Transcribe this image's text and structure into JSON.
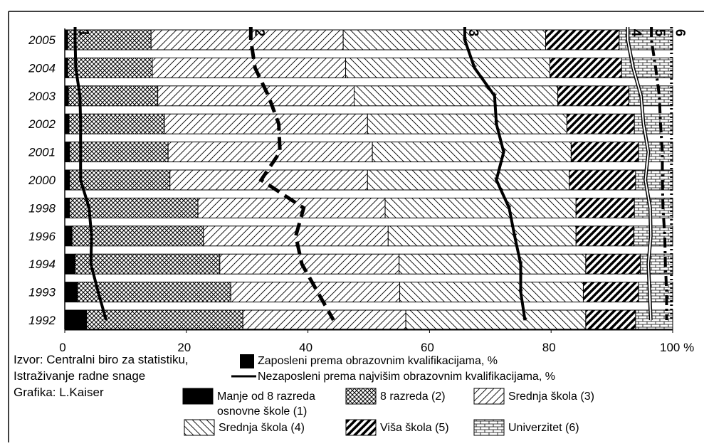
{
  "chart_data": {
    "type": "bar",
    "orientation": "horizontal",
    "stacked": true,
    "categories": [
      "2005",
      "2004",
      "2003",
      "2002",
      "2001",
      "2000",
      "1998",
      "1996",
      "1994",
      "1993",
      "1992"
    ],
    "series": [
      {
        "name": "Manje od 8 razreda osnovne škole (1)",
        "pattern": "solid",
        "values": [
          0.5,
          0.5,
          0.6,
          0.7,
          0.8,
          0.8,
          0.8,
          1.2,
          1.7,
          2.1,
          3.6
        ]
      },
      {
        "name": "8 razreda (2)",
        "pattern": "cross",
        "values": [
          13.7,
          13.9,
          14.7,
          15.7,
          16.2,
          16.5,
          21.1,
          21.6,
          23.8,
          25.2,
          25.7
        ]
      },
      {
        "name": "Srednja škola (3)",
        "pattern": "hatch-right",
        "values": [
          31.6,
          31.8,
          32.3,
          33.4,
          33.6,
          32.5,
          30.8,
          30.4,
          29.5,
          27.8,
          26.8
        ]
      },
      {
        "name": "Srednja škola (4)",
        "pattern": "hatch-left",
        "values": [
          33.3,
          33.6,
          33.5,
          32.8,
          32.7,
          33.2,
          31.4,
          30.9,
          30.7,
          30.2,
          29.6
        ]
      },
      {
        "name": "Viša škola (5)",
        "pattern": "hatch-bold",
        "values": [
          12.1,
          11.8,
          11.7,
          11.1,
          11.1,
          10.9,
          9.6,
          9.5,
          9.0,
          9.1,
          8.2
        ]
      },
      {
        "name": "Univerzitet (6)",
        "pattern": "brick",
        "values": [
          8.8,
          8.4,
          7.2,
          6.3,
          5.6,
          6.1,
          6.3,
          6.4,
          5.3,
          5.6,
          6.1
        ]
      }
    ],
    "lines": [
      {
        "name": "1",
        "style": "solid",
        "values": [
          1.7,
          1.8,
          2.5,
          2.6,
          2.6,
          2.6,
          4.0,
          4.4,
          4.3,
          5.5,
          6.8
        ]
      },
      {
        "name": "2",
        "style": "dash",
        "values": [
          30.6,
          31.3,
          33.5,
          35.2,
          35.4,
          32.3,
          39.3,
          38.0,
          39.0,
          41.6,
          44.2
        ]
      },
      {
        "name": "3",
        "style": "star",
        "values": [
          65.8,
          67.4,
          70.7,
          71.0,
          72.2,
          71.0,
          73.1,
          74.0,
          75.0,
          75.0,
          75.7
        ]
      },
      {
        "name": "4",
        "style": "double",
        "values": [
          92.6,
          93.5,
          94.8,
          95.2,
          96.0,
          95.5,
          96.3,
          96.4,
          96.0,
          96.2,
          96.4
        ]
      },
      {
        "name": "5",
        "style": "dashdot",
        "values": [
          96.5,
          97.2,
          97.8,
          98.0,
          98.3,
          98.3,
          98.4,
          98.7,
          98.8,
          99.0,
          99.0
        ]
      },
      {
        "name": "6",
        "style": "dotted",
        "values": [
          99.8,
          99.8,
          99.8,
          99.8,
          99.8,
          99.8,
          99.8,
          99.8,
          99.8,
          99.8,
          99.8
        ]
      }
    ],
    "x_ticks": [
      "0",
      "20",
      "40",
      "60",
      "80",
      "100 %"
    ],
    "xlim": [
      0,
      100
    ],
    "grid": false,
    "source_lines": [
      "Izvor: Centralni biro za statistiku,",
      "Istraživanje radne snage",
      "Grafika: L.Kaiser"
    ],
    "legend_lines": [
      {
        "label": "Zaposleni prema obrazovnim kvalifikacijama, %",
        "swatch": "bar"
      },
      {
        "label": "Nezaposleni prema najvišim obrazovnim kvalifikacijama,  %",
        "swatch": "line"
      }
    ],
    "legend_patterns": [
      {
        "label_lines": [
          "Manje od 8 razreda",
          "osnovne škole (1)"
        ],
        "pattern": "solid"
      },
      {
        "label_lines": [
          "8 razreda (2)"
        ],
        "pattern": "cross"
      },
      {
        "label_lines": [
          "Srednja škola (3)"
        ],
        "pattern": "hatch-right"
      },
      {
        "label_lines": [
          "Srednja škola (4)"
        ],
        "pattern": "hatch-left"
      },
      {
        "label_lines": [
          "Viša škola (5)"
        ],
        "pattern": "hatch-bold"
      },
      {
        "label_lines": [
          "Univerzitet (6)"
        ],
        "pattern": "brick"
      }
    ]
  }
}
